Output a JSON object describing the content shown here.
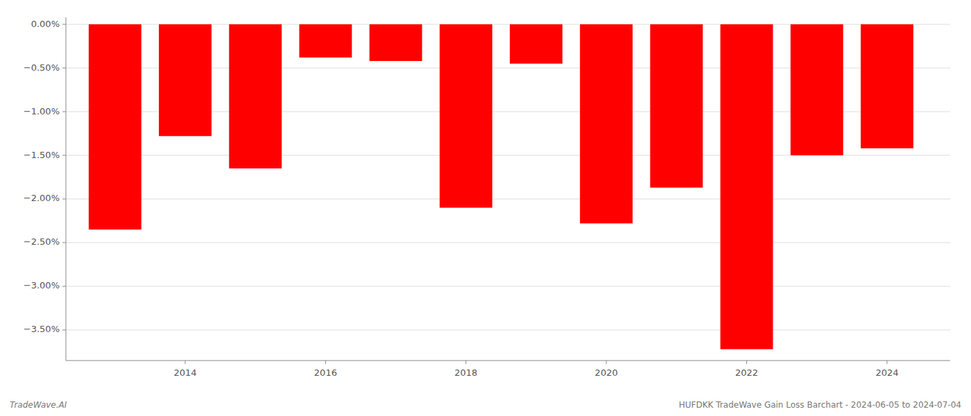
{
  "chart_data": {
    "type": "bar",
    "x": [
      2013,
      2014,
      2015,
      2016,
      2017,
      2018,
      2019,
      2020,
      2021,
      2022,
      2023,
      2024
    ],
    "values": [
      -2.35,
      -1.28,
      -1.65,
      -0.38,
      -0.42,
      -2.1,
      -0.45,
      -2.28,
      -1.87,
      -3.72,
      -1.5,
      -1.42
    ],
    "color": "#ff0000",
    "xlim": [
      2012.3,
      2024.9
    ],
    "xticks": [
      2014,
      2016,
      2018,
      2020,
      2022,
      2024
    ],
    "ylim": [
      -3.85,
      0.08
    ],
    "yticks": [
      {
        "value": 0.0,
        "label": "0.00%"
      },
      {
        "value": -0.5,
        "label": "−0.50%"
      },
      {
        "value": -1.0,
        "label": "−1.00%"
      },
      {
        "value": -1.5,
        "label": "−1.50%"
      },
      {
        "value": -2.0,
        "label": "−2.00%"
      },
      {
        "value": -2.5,
        "label": "−2.50%"
      },
      {
        "value": -3.0,
        "label": "−3.00%"
      },
      {
        "value": -3.5,
        "label": "−3.50%"
      }
    ],
    "grid": true,
    "annotations": [
      "TradeWave.AI",
      "HUFDKK TradeWave Gain Loss Barchart - 2024-06-05 to 2024-07-04"
    ]
  }
}
